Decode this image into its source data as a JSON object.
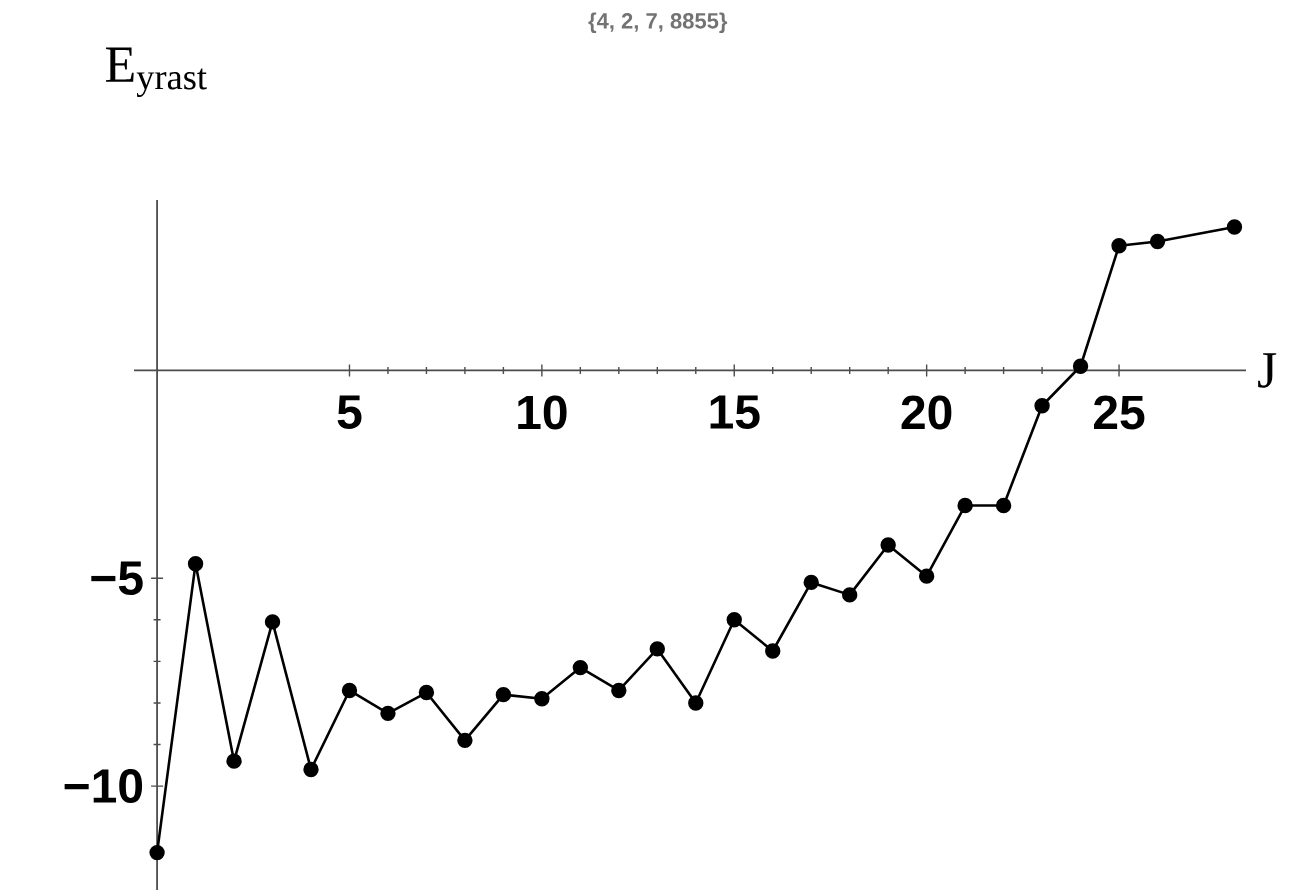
{
  "chart_data": {
    "type": "line",
    "title": "{4, 2, 7, 8855}",
    "xlabel": "J",
    "ylabel": "E$_{yrast}$",
    "xlim": [
      -0.6,
      28.3
    ],
    "ylim": [
      -12.5,
      4.1
    ],
    "xticks": [
      5,
      10,
      15,
      20,
      25
    ],
    "yticks": [
      {
        "value": -10,
        "label": "−10"
      },
      {
        "value": -5,
        "label": "−5"
      }
    ],
    "marker": "circle",
    "line_style": "solid",
    "series": [
      {
        "color": "#000000",
        "x": [
          0,
          1,
          2,
          3,
          4,
          5,
          6,
          7,
          8,
          9,
          10,
          11,
          12,
          13,
          14,
          15,
          16,
          17,
          18,
          19,
          20,
          21,
          22,
          23,
          24,
          25,
          26,
          28
        ],
        "values": [
          -11.6,
          -4.65,
          -9.4,
          -6.05,
          -9.6,
          -7.7,
          -8.25,
          -7.75,
          -8.9,
          -7.8,
          -7.9,
          -7.15,
          -7.7,
          -6.7,
          -8.0,
          -6.0,
          -6.75,
          -5.1,
          -5.4,
          -4.2,
          -4.95,
          -3.25,
          -3.25,
          -0.85,
          0.1,
          3.0,
          3.1,
          3.45
        ]
      }
    ]
  }
}
